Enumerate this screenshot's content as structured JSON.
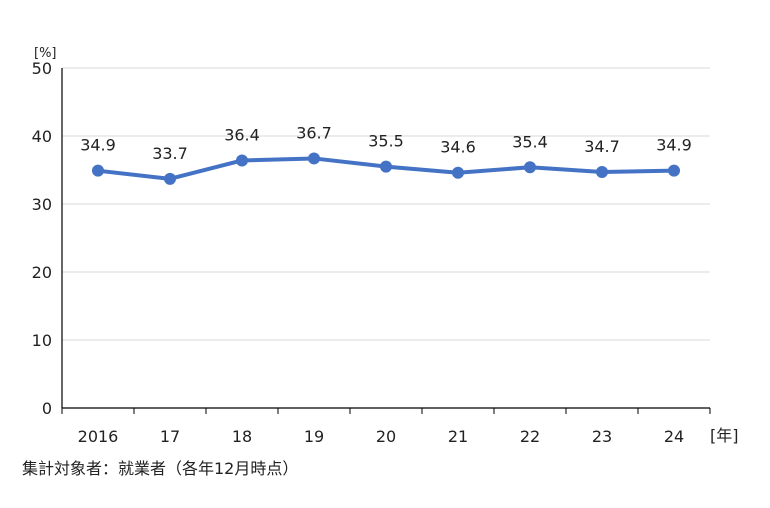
{
  "chart_data": {
    "type": "line",
    "categories": [
      "2016",
      "17",
      "18",
      "19",
      "20",
      "21",
      "22",
      "23",
      "24"
    ],
    "values": [
      34.9,
      33.7,
      36.4,
      36.7,
      35.5,
      34.6,
      35.4,
      34.7,
      34.9
    ],
    "data_labels": [
      "34.9",
      "33.7",
      "36.4",
      "36.7",
      "35.5",
      "34.6",
      "35.4",
      "34.7",
      "34.9"
    ],
    "ylim": [
      0,
      50
    ],
    "yticks": [
      "0",
      "10",
      "20",
      "30",
      "40",
      "50"
    ],
    "yunit": "[%]",
    "xunit": "[年]",
    "grid": true,
    "line_color": "#4472c4"
  },
  "footnote": "集計対象者：就業者（各年12月時点）"
}
